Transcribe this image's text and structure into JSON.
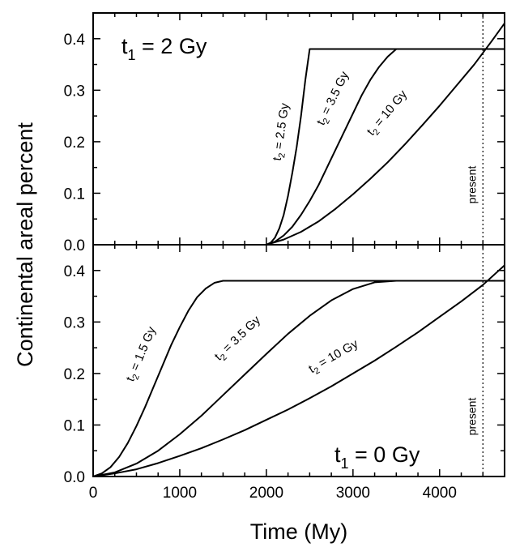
{
  "chart_data": [
    {
      "type": "line",
      "panel": "top",
      "title_main": "t",
      "title_sub": "1",
      "title_rest": " = 2 Gy",
      "xlabel": "Time (My)",
      "ylabel": "Continental areal percent",
      "xlim": [
        0,
        4750
      ],
      "ylim": [
        0,
        0.45
      ],
      "yticks": [
        "0.0",
        "0.1",
        "0.2",
        "0.3",
        "0.4"
      ],
      "present_x": 4500,
      "present_label": "present",
      "series": [
        {
          "label_pre": "t",
          "label_sub": "2",
          "label_post": " = 2.5 Gy",
          "x": [
            2000,
            2050,
            2100,
            2150,
            2200,
            2250,
            2300,
            2350,
            2400,
            2450,
            2500,
            4750
          ],
          "y": [
            0,
            0.004,
            0.014,
            0.032,
            0.058,
            0.095,
            0.14,
            0.19,
            0.25,
            0.32,
            0.38,
            0.38
          ]
        },
        {
          "label_pre": "t",
          "label_sub": "2",
          "label_post": " = 3.5 Gy",
          "x": [
            2000,
            2100,
            2200,
            2300,
            2400,
            2500,
            2600,
            2700,
            2800,
            2900,
            3000,
            3100,
            3200,
            3300,
            3400,
            3500,
            4750
          ],
          "y": [
            0,
            0.006,
            0.018,
            0.035,
            0.058,
            0.085,
            0.115,
            0.15,
            0.185,
            0.22,
            0.255,
            0.29,
            0.32,
            0.345,
            0.365,
            0.38,
            0.38
          ]
        },
        {
          "label_pre": "t",
          "label_sub": "2",
          "label_post": " = 10 Gy",
          "x": [
            2000,
            2200,
            2400,
            2600,
            2800,
            3000,
            3200,
            3400,
            3600,
            3800,
            4000,
            4200,
            4400,
            4600,
            4750
          ],
          "y": [
            0,
            0.01,
            0.025,
            0.045,
            0.07,
            0.098,
            0.128,
            0.16,
            0.195,
            0.232,
            0.27,
            0.31,
            0.35,
            0.395,
            0.43
          ]
        }
      ]
    },
    {
      "type": "line",
      "panel": "bottom",
      "title_main": "t",
      "title_sub": "1",
      "title_rest": " = 0 Gy",
      "xlim": [
        0,
        4750
      ],
      "ylim": [
        0,
        0.45
      ],
      "xticks": [
        "0",
        "1000",
        "2000",
        "3000",
        "4000"
      ],
      "yticks": [
        "0.0",
        "0.1",
        "0.2",
        "0.3",
        "0.4"
      ],
      "present_x": 4500,
      "present_label": "present",
      "series": [
        {
          "label_pre": "t",
          "label_sub": "2",
          "label_post": " = 1.5 Gy",
          "x": [
            0,
            100,
            200,
            300,
            400,
            500,
            600,
            700,
            800,
            900,
            1000,
            1100,
            1200,
            1300,
            1400,
            1500,
            4750
          ],
          "y": [
            0,
            0.006,
            0.018,
            0.038,
            0.065,
            0.098,
            0.135,
            0.175,
            0.215,
            0.255,
            0.29,
            0.322,
            0.348,
            0.365,
            0.376,
            0.38,
            0.38
          ]
        },
        {
          "label_pre": "t",
          "label_sub": "2",
          "label_post": " = 3.5 Gy",
          "x": [
            0,
            250,
            500,
            750,
            1000,
            1250,
            1500,
            1750,
            2000,
            2250,
            2500,
            2750,
            3000,
            3250,
            3500,
            4750
          ],
          "y": [
            0,
            0.008,
            0.025,
            0.05,
            0.082,
            0.118,
            0.158,
            0.198,
            0.238,
            0.277,
            0.312,
            0.342,
            0.364,
            0.377,
            0.38,
            0.38
          ]
        },
        {
          "label_pre": "t",
          "label_sub": "2",
          "label_post": " = 10 Gy",
          "x": [
            0,
            250,
            500,
            750,
            1000,
            1250,
            1500,
            1750,
            2000,
            2250,
            2500,
            2750,
            3000,
            3250,
            3500,
            3750,
            4000,
            4250,
            4500,
            4750
          ],
          "y": [
            0,
            0.006,
            0.014,
            0.026,
            0.04,
            0.055,
            0.072,
            0.09,
            0.11,
            0.13,
            0.152,
            0.175,
            0.2,
            0.225,
            0.252,
            0.28,
            0.31,
            0.34,
            0.372,
            0.41
          ]
        }
      ]
    }
  ]
}
